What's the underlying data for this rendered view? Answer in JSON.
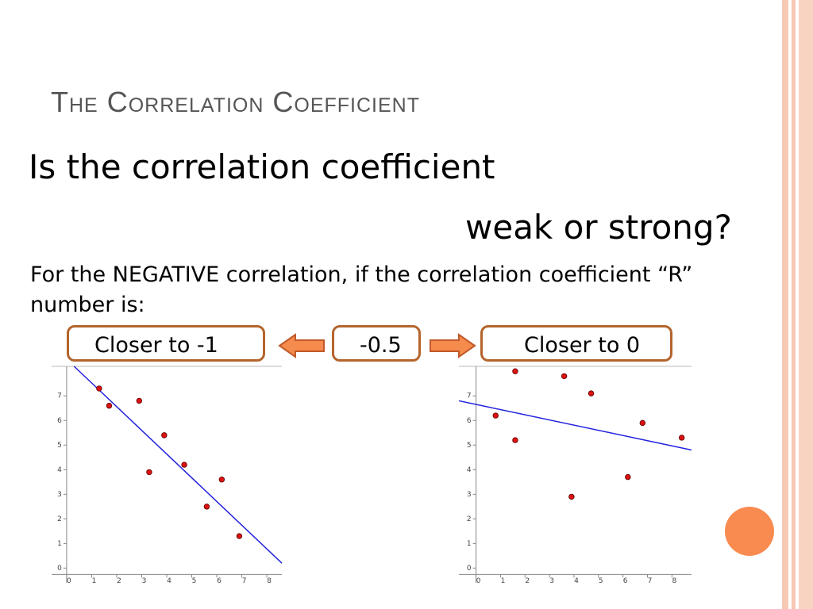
{
  "title": "The Correlation Coefficient",
  "heading": "Is the correlation coefficient",
  "subheading": "weak or strong?",
  "body": "For the NEGATIVE correlation, if the correlation coefficient “R” number is:",
  "boxes": [
    "Closer to -1",
    "-0.5",
    "Closer to 0"
  ],
  "chart_data": [
    {
      "type": "scatter",
      "color": "#dd1111",
      "line_color": "#2222dd",
      "x": [
        1.3,
        1.7,
        2.9,
        3.3,
        3.9,
        4.7,
        5.6,
        6.2,
        6.9
      ],
      "values": [
        7.3,
        6.6,
        6.8,
        3.9,
        5.4,
        4.2,
        2.5,
        3.6,
        1.3
      ],
      "trend": {
        "x": [
          0.3,
          8.6
        ],
        "y": [
          8.2,
          0.2
        ]
      },
      "xlim": [
        -0.6,
        8.6
      ],
      "ylim": [
        -0.6,
        8.2
      ],
      "xticks": [
        0,
        1,
        2,
        3,
        4,
        5,
        6,
        7,
        8
      ],
      "yticks": [
        0,
        1,
        2,
        3,
        4,
        5,
        6,
        7
      ]
    },
    {
      "type": "scatter",
      "color": "#dd1111",
      "line_color": "#2222dd",
      "x": [
        0.8,
        1.6,
        1.6,
        3.6,
        4.7,
        3.9,
        6.2,
        6.8,
        8.4
      ],
      "values": [
        6.2,
        8.0,
        5.2,
        7.8,
        7.1,
        2.9,
        3.7,
        5.9,
        5.3
      ],
      "trend": {
        "x": [
          -0.7,
          8.8
        ],
        "y": [
          6.8,
          4.8
        ]
      },
      "xlim": [
        -0.7,
        8.8
      ],
      "ylim": [
        -0.6,
        8.2
      ],
      "xticks": [
        0,
        1,
        2,
        3,
        4,
        5,
        6,
        7,
        8
      ],
      "yticks": [
        0,
        1,
        2,
        3,
        4,
        5,
        6,
        7
      ]
    }
  ]
}
